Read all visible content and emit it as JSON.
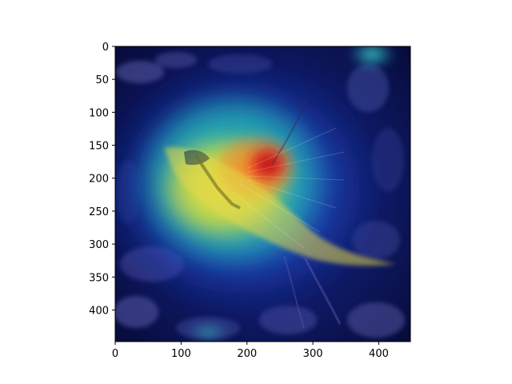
{
  "figure": {
    "kind": "image-with-heatmap-overlay",
    "subject": "bird",
    "colormap": "jet",
    "colors": {
      "background": "#ffffff",
      "axes": "#000000",
      "image_dark": "#0a0f4a",
      "heat_low": "#1533c8",
      "heat_mid": "#22c9b0",
      "heat_high_yellow": "#f0e02a",
      "heat_peak": "#d8161a"
    }
  },
  "axes": {
    "x": {
      "lim": [
        0,
        448
      ],
      "ticks": [
        {
          "value": 0,
          "label": "0"
        },
        {
          "value": 100,
          "label": "100"
        },
        {
          "value": 200,
          "label": "200"
        },
        {
          "value": 300,
          "label": "300"
        },
        {
          "value": 400,
          "label": "400"
        }
      ]
    },
    "y": {
      "lim": [
        0,
        448
      ],
      "inverted": true,
      "ticks": [
        {
          "value": 0,
          "label": "0"
        },
        {
          "value": 50,
          "label": "50"
        },
        {
          "value": 100,
          "label": "100"
        },
        {
          "value": 150,
          "label": "150"
        },
        {
          "value": 200,
          "label": "200"
        },
        {
          "value": 250,
          "label": "250"
        },
        {
          "value": 300,
          "label": "300"
        },
        {
          "value": 350,
          "label": "350"
        },
        {
          "value": 400,
          "label": "400"
        }
      ]
    }
  }
}
